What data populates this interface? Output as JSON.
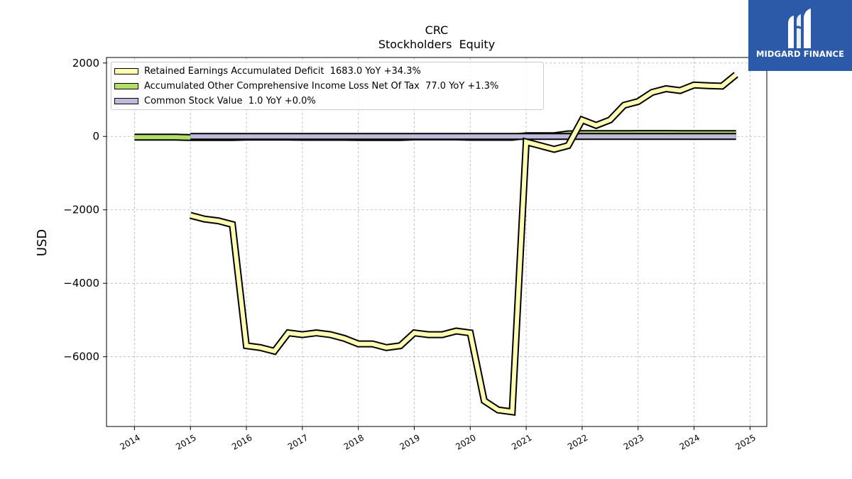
{
  "chart_data": {
    "type": "line",
    "title": "CRC",
    "subtitle": "Stockholders  Equity",
    "ylabel": "USD",
    "xlabel": "",
    "xlim": [
      2013.5,
      2025.3
    ],
    "ylim": [
      -7900,
      2150
    ],
    "x_ticks": [
      2014,
      2015,
      2016,
      2017,
      2018,
      2019,
      2020,
      2021,
      2022,
      2023,
      2024,
      2025
    ],
    "y_ticks": [
      -6000,
      -4000,
      -2000,
      0,
      2000
    ],
    "y_tick_labels": [
      "−6000",
      "−4000",
      "−2000",
      "0",
      "2000"
    ],
    "grid": true,
    "legend_position": "top-left",
    "series": [
      {
        "name": "Retained Earnings Accumulated Deficit",
        "legend_label": "Retained Earnings Accumulated Deficit  1683.0 YoY +34.3%",
        "color": "#ffffb3",
        "x": [
          2015.0,
          2015.25,
          2015.5,
          2015.75,
          2016.0,
          2016.25,
          2016.5,
          2016.75,
          2017.0,
          2017.25,
          2017.5,
          2017.75,
          2018.0,
          2018.25,
          2018.5,
          2018.75,
          2019.0,
          2019.25,
          2019.5,
          2019.75,
          2020.0,
          2020.25,
          2020.5,
          2020.75,
          2021.0,
          2021.25,
          2021.5,
          2021.75,
          2022.0,
          2022.25,
          2022.5,
          2022.75,
          2023.0,
          2023.25,
          2023.5,
          2023.75,
          2024.0,
          2024.25,
          2024.5,
          2024.75
        ],
        "y": [
          -2150,
          -2250,
          -2300,
          -2400,
          -5700,
          -5750,
          -5850,
          -5350,
          -5400,
          -5350,
          -5400,
          -5500,
          -5650,
          -5650,
          -5750,
          -5700,
          -5350,
          -5400,
          -5400,
          -5300,
          -5350,
          -7200,
          -7450,
          -7500,
          -150,
          -250,
          -350,
          -250,
          450,
          300,
          450,
          850,
          950,
          1200,
          1300,
          1250,
          1400,
          1380,
          1370,
          1683
        ]
      },
      {
        "name": "Accumulated Other Comprehensive Income Loss Net Of Tax",
        "legend_label": "Accumulated Other Comprehensive Income Loss Net Of Tax  77.0 YoY +1.3%",
        "color": "#b3de69",
        "x": [
          2014.0,
          2014.25,
          2014.5,
          2014.75,
          2015.0,
          2015.25,
          2015.5,
          2015.75,
          2016.0,
          2016.25,
          2016.5,
          2016.75,
          2017.0,
          2017.25,
          2017.5,
          2017.75,
          2018.0,
          2018.25,
          2018.5,
          2018.75,
          2019.0,
          2019.25,
          2019.5,
          2019.75,
          2020.0,
          2020.25,
          2020.5,
          2020.75,
          2021.0,
          2021.25,
          2021.5,
          2021.75,
          2022.0,
          2022.25,
          2022.5,
          2022.75,
          2023.0,
          2023.25,
          2023.5,
          2023.75,
          2024.0,
          2024.25,
          2024.5,
          2024.75
        ],
        "y": [
          -20,
          -20,
          -20,
          -20,
          -30,
          -30,
          -30,
          -30,
          -20,
          -20,
          -20,
          -20,
          -25,
          -25,
          -25,
          -25,
          -30,
          -30,
          -30,
          -30,
          -15,
          -15,
          -15,
          -15,
          -25,
          -25,
          -25,
          -25,
          20,
          20,
          20,
          70,
          76,
          76,
          76,
          76,
          80,
          80,
          80,
          78,
          76,
          76,
          76,
          77
        ]
      },
      {
        "name": "Common Stock Value",
        "legend_label": "Common Stock Value  1.0 YoY +0.0%",
        "color": "#bebada",
        "x": [
          2015.0,
          2015.5,
          2016.0,
          2016.5,
          2017.0,
          2017.5,
          2018.0,
          2018.5,
          2019.0,
          2019.5,
          2020.0,
          2020.5,
          2021.0,
          2021.5,
          2022.0,
          2022.5,
          2023.0,
          2023.5,
          2024.0,
          2024.75
        ],
        "y": [
          1,
          1,
          1,
          1,
          1,
          1,
          1,
          1,
          1,
          1,
          1,
          1,
          1,
          1,
          1,
          1,
          1,
          1,
          1,
          1
        ]
      }
    ]
  },
  "logo": {
    "text": "MIDGARD FINANCE",
    "background": "#2c5aa8"
  }
}
